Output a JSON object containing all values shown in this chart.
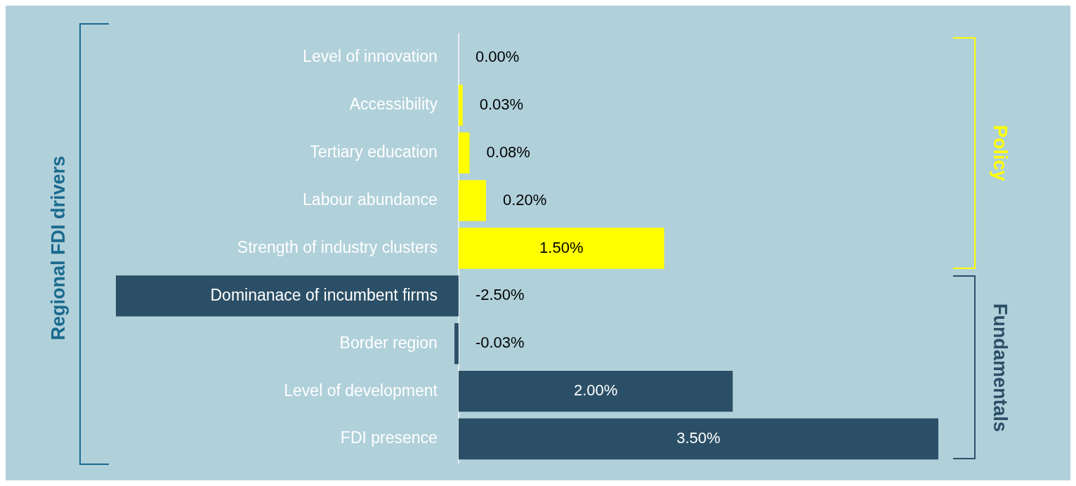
{
  "chart_data": {
    "type": "bar",
    "orientation": "horizontal",
    "categories": [
      "Level of innovation",
      "Accessibility",
      "Tertiary education",
      "Labour abundance",
      "Strength of industry clusters",
      "Dominanace of incumbent firms",
      "Border region",
      "Level of development",
      "FDI presence"
    ],
    "series": [
      {
        "name": "Policy",
        "color": "#ffff00",
        "values": [
          0,
          0.03,
          0.08,
          0.2,
          1.5,
          null,
          null,
          null,
          null
        ],
        "value_labels": [
          "0.00%",
          "0.03%",
          "0.08%",
          "0.20%",
          "1.50%",
          null,
          null,
          null,
          null
        ]
      },
      {
        "name": "Fundamentals",
        "color": "#2b4f66",
        "values": [
          null,
          null,
          null,
          null,
          null,
          -2.5,
          -0.03,
          2,
          3.5
        ],
        "value_labels": [
          null,
          null,
          null,
          null,
          null,
          "-2.50%",
          "-0.03%",
          "2.00%",
          "3.50%"
        ]
      }
    ],
    "xlim": [
      -2.5,
      3.5
    ],
    "tick_labels": "y",
    "grid": false,
    "legend": false,
    "annotations": [
      "Regional FDI drivers"
    ]
  }
}
